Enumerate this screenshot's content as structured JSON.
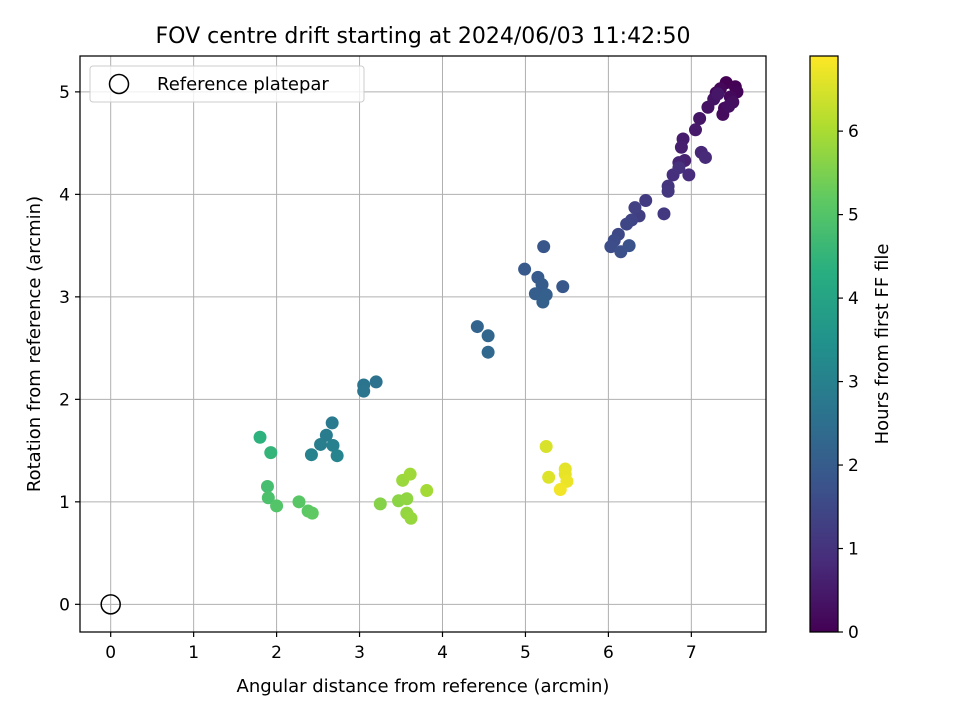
{
  "chart_data": {
    "type": "scatter",
    "title": "FOV centre drift starting at 2024/06/03 11:42:50",
    "xlabel": "Angular distance from reference (arcmin)",
    "ylabel": "Rotation from reference (arcmin)",
    "xlim": [
      -0.37,
      7.9
    ],
    "ylim": [
      -0.27,
      5.35
    ],
    "xticks": [
      0,
      1,
      2,
      3,
      4,
      5,
      6,
      7
    ],
    "yticks": [
      0,
      1,
      2,
      3,
      4,
      5
    ],
    "grid": true,
    "legend": {
      "position": "top-left",
      "entries": [
        "Reference platepar"
      ]
    },
    "reference_point": {
      "x": 0,
      "y": 0
    },
    "colorbar": {
      "label": "Hours from first FF file",
      "colormap": "viridis",
      "range": [
        0,
        6.9
      ],
      "ticks": [
        0,
        1,
        2,
        3,
        4,
        5,
        6
      ]
    },
    "points": [
      [
        7.42,
        5.09,
        0.0
      ],
      [
        7.53,
        5.05,
        0.03
      ],
      [
        7.55,
        5.0,
        0.06
      ],
      [
        7.3,
        4.99,
        0.09
      ],
      [
        7.35,
        5.03,
        0.12
      ],
      [
        7.47,
        4.95,
        0.15
      ],
      [
        7.4,
        4.84,
        0.18
      ],
      [
        7.38,
        4.78,
        0.22
      ],
      [
        7.5,
        4.9,
        0.25
      ],
      [
        7.45,
        4.86,
        0.28
      ],
      [
        7.2,
        4.85,
        0.32
      ],
      [
        7.27,
        4.93,
        0.36
      ],
      [
        7.1,
        4.74,
        0.4
      ],
      [
        7.32,
        4.98,
        0.44
      ],
      [
        7.05,
        4.63,
        0.48
      ],
      [
        6.9,
        4.54,
        0.52
      ],
      [
        6.88,
        4.46,
        0.58
      ],
      [
        6.92,
        4.33,
        0.64
      ],
      [
        6.85,
        4.31,
        0.7
      ],
      [
        7.12,
        4.41,
        0.76
      ],
      [
        7.17,
        4.36,
        0.82
      ],
      [
        6.97,
        4.19,
        0.86
      ],
      [
        6.78,
        4.19,
        0.9
      ],
      [
        6.85,
        4.26,
        0.96
      ],
      [
        6.72,
        4.08,
        1.02
      ],
      [
        6.72,
        4.03,
        1.08
      ],
      [
        6.67,
        3.81,
        1.14
      ],
      [
        6.45,
        3.94,
        1.2
      ],
      [
        6.37,
        3.79,
        1.26
      ],
      [
        6.32,
        3.87,
        1.32
      ],
      [
        6.28,
        3.75,
        1.38
      ],
      [
        6.22,
        3.71,
        1.44
      ],
      [
        6.12,
        3.61,
        1.5
      ],
      [
        6.07,
        3.55,
        1.56
      ],
      [
        6.03,
        3.49,
        1.62
      ],
      [
        6.15,
        3.44,
        1.68
      ],
      [
        6.25,
        3.5,
        1.74
      ],
      [
        5.22,
        3.49,
        1.82
      ],
      [
        5.45,
        3.1,
        1.88
      ],
      [
        4.99,
        3.27,
        1.92
      ],
      [
        5.15,
        3.19,
        1.96
      ],
      [
        5.2,
        3.12,
        2.0
      ],
      [
        5.12,
        3.03,
        2.04
      ],
      [
        5.25,
        3.02,
        2.08
      ],
      [
        5.21,
        2.95,
        2.12
      ],
      [
        4.42,
        2.71,
        2.2
      ],
      [
        4.55,
        2.62,
        2.26
      ],
      [
        4.55,
        2.46,
        2.32
      ],
      [
        3.2,
        2.17,
        2.6
      ],
      [
        3.05,
        2.14,
        2.64
      ],
      [
        3.05,
        2.08,
        2.68
      ],
      [
        2.67,
        1.77,
        2.8
      ],
      [
        2.6,
        1.65,
        2.86
      ],
      [
        2.53,
        1.56,
        2.92
      ],
      [
        2.68,
        1.55,
        2.98
      ],
      [
        2.42,
        1.46,
        3.04
      ],
      [
        2.73,
        1.45,
        3.1
      ],
      [
        1.8,
        1.63,
        4.4
      ],
      [
        1.93,
        1.48,
        4.5
      ],
      [
        1.89,
        1.15,
        4.8
      ],
      [
        1.9,
        1.04,
        4.9
      ],
      [
        2.0,
        0.96,
        5.0
      ],
      [
        2.27,
        1.0,
        5.08
      ],
      [
        2.38,
        0.91,
        5.14
      ],
      [
        2.43,
        0.89,
        5.18
      ],
      [
        3.25,
        0.98,
        5.6
      ],
      [
        3.47,
        1.01,
        5.66
      ],
      [
        3.57,
        1.03,
        5.72
      ],
      [
        3.57,
        0.89,
        5.76
      ],
      [
        3.62,
        0.84,
        5.8
      ],
      [
        3.52,
        1.21,
        5.84
      ],
      [
        3.61,
        1.27,
        5.88
      ],
      [
        3.81,
        1.11,
        5.94
      ],
      [
        5.25,
        1.54,
        6.5
      ],
      [
        5.28,
        1.24,
        6.56
      ],
      [
        5.48,
        1.32,
        6.62
      ],
      [
        5.48,
        1.27,
        6.66
      ],
      [
        5.5,
        1.2,
        6.72
      ],
      [
        5.42,
        1.12,
        6.78
      ]
    ]
  }
}
